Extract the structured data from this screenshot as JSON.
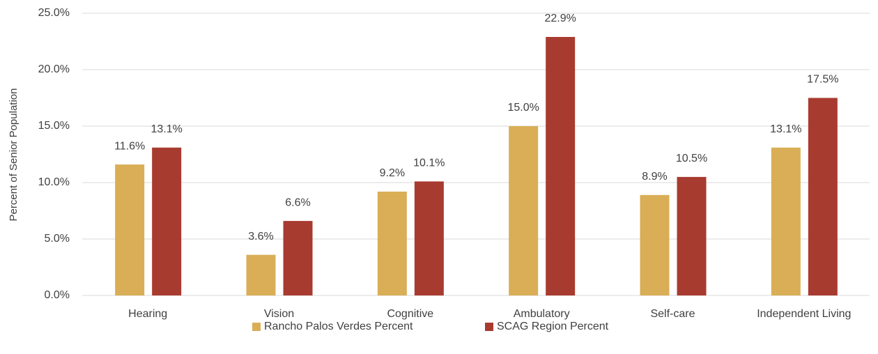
{
  "chart_data": {
    "type": "bar",
    "y_label": "Percent of Senior Population",
    "categories": [
      "Hearing",
      "Vision",
      "Cognitive",
      "Ambulatory",
      "Self-care",
      "Independent Living"
    ],
    "series": [
      {
        "name": "Rancho Palos Verdes Percent",
        "color": "#d9ae56",
        "values": [
          11.6,
          3.6,
          9.2,
          15.0,
          8.9,
          13.1
        ],
        "value_labels": [
          "11.6%",
          "3.6%",
          "9.2%",
          "15.0%",
          "8.9%",
          "13.1%"
        ]
      },
      {
        "name": "SCAG Region Percent",
        "color": "#a83b30",
        "values": [
          13.1,
          6.6,
          10.1,
          22.9,
          10.5,
          17.5
        ],
        "value_labels": [
          "13.1%",
          "6.6%",
          "10.1%",
          "22.9%",
          "10.5%",
          "17.5%"
        ]
      }
    ],
    "ylim": [
      0,
      25
    ],
    "yticks": [
      {
        "value": 0,
        "label": "0.0%"
      },
      {
        "value": 5,
        "label": "5.0%"
      },
      {
        "value": 10,
        "label": "10.0%"
      },
      {
        "value": 15,
        "label": "15.0%"
      },
      {
        "value": 20,
        "label": "20.0%"
      },
      {
        "value": 25,
        "label": "25.0%"
      }
    ],
    "grid": true,
    "legend": "bottom"
  }
}
